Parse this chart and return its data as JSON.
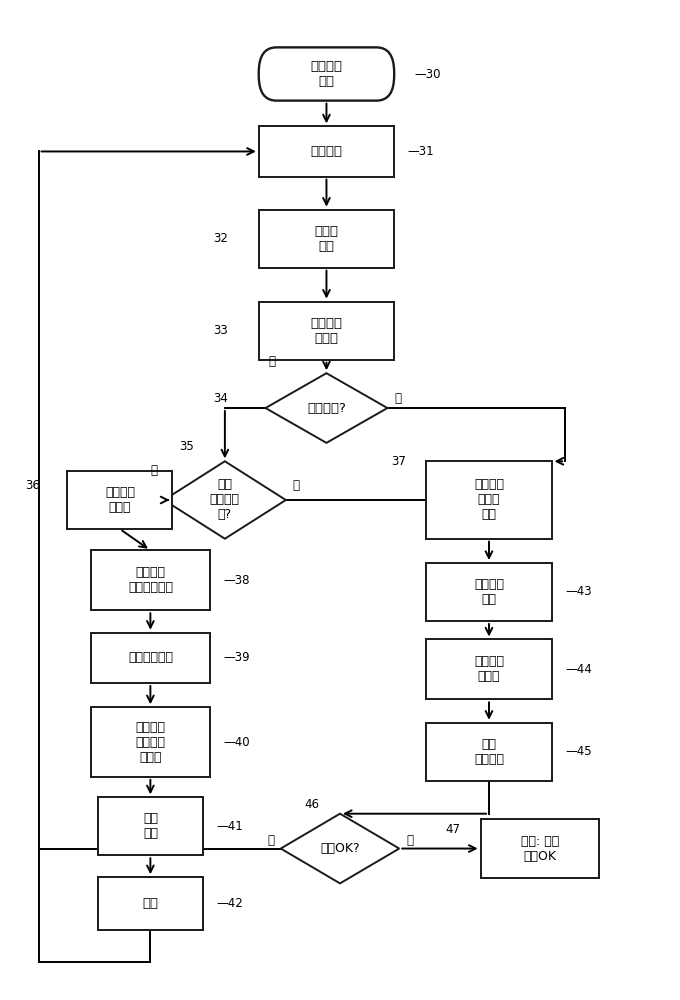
{
  "bg_color": "#ffffff",
  "line_color": "#1a1a1a",
  "text_color": "#1a1a1a",
  "font_size": 9.5,
  "figsize": [
    6.8,
    10.0
  ],
  "dpi": 100,
  "xlim": [
    0,
    1
  ],
  "ylim": [
    0.02,
    1.05
  ]
}
